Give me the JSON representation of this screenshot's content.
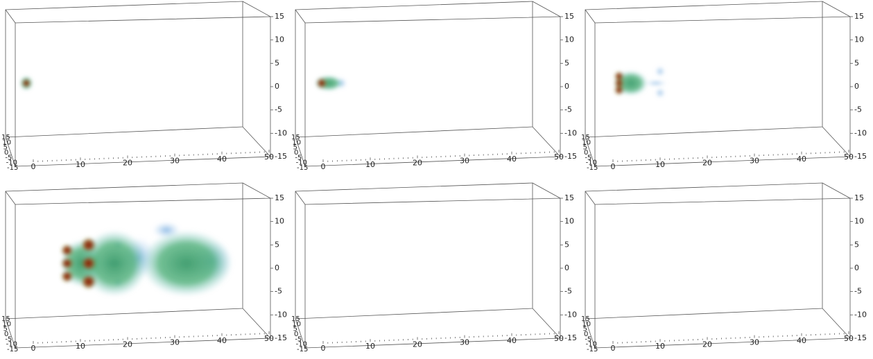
{
  "axes": {
    "vertical_ticks": [
      15,
      10,
      5,
      0,
      -5,
      -10,
      -15
    ],
    "horizontal_ticks": [
      0,
      10,
      20,
      30,
      40,
      50
    ],
    "depth_ticks": [
      15,
      10,
      5,
      0,
      -5,
      -10,
      -15
    ]
  }
}
